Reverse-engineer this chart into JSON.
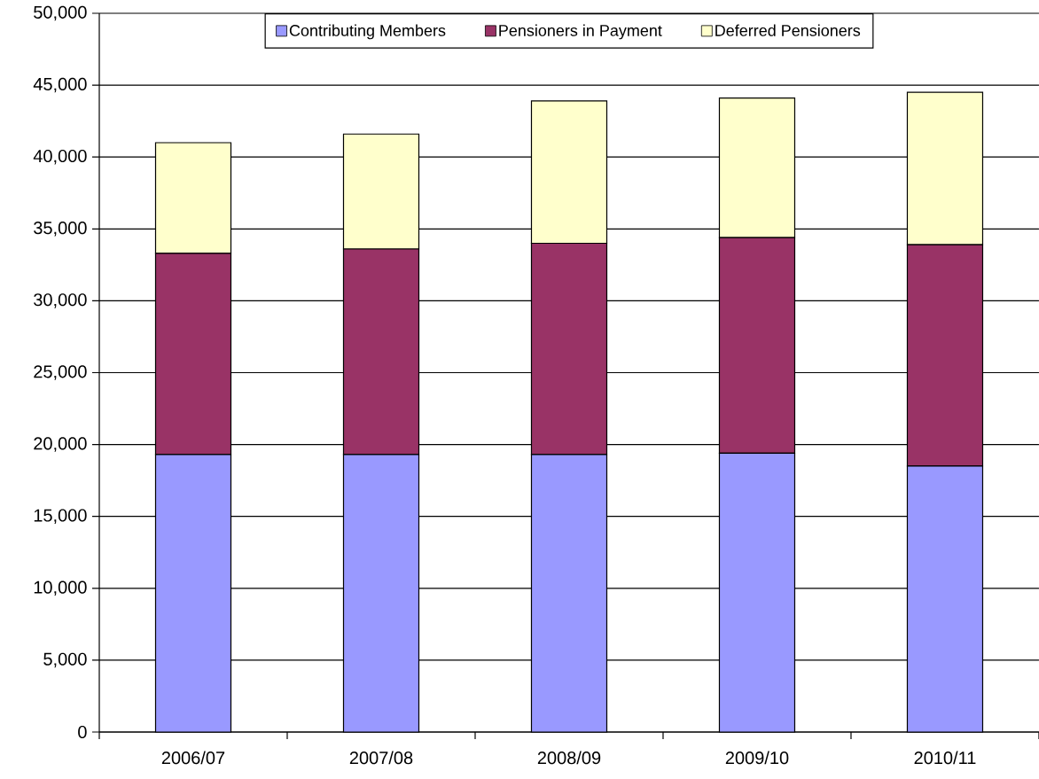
{
  "chart_data": {
    "type": "bar",
    "stacked": true,
    "categories": [
      "2006/07",
      "2007/08",
      "2008/09",
      "2009/10",
      "2010/11"
    ],
    "series": [
      {
        "name": "Contributing Members",
        "color": "#9999ff",
        "values": [
          19300,
          19300,
          19300,
          19400,
          18500
        ]
      },
      {
        "name": "Pensioners in Payment",
        "color": "#993366",
        "values": [
          14000,
          14300,
          14700,
          15000,
          15400
        ]
      },
      {
        "name": "Deferred Pensioners",
        "color": "#ffffcc",
        "values": [
          7700,
          8000,
          9900,
          9700,
          10600
        ]
      }
    ],
    "ylim": [
      0,
      50000
    ],
    "yticks": [
      0,
      {
        "value": 5000,
        "label": "5,000"
      },
      {
        "value": 10000,
        "label": "10,000"
      },
      {
        "value": 15000,
        "label": "15,000"
      },
      {
        "value": 20000,
        "label": "20,000"
      },
      {
        "value": 25000,
        "label": "25,000"
      },
      {
        "value": 30000,
        "label": "30,000"
      },
      {
        "value": 35000,
        "label": "35,000"
      },
      {
        "value": 40000,
        "label": "40,000"
      },
      {
        "value": 45000,
        "label": "45,000"
      },
      {
        "value": 50000,
        "label": "50,000"
      }
    ],
    "grid": "y",
    "legend": "top"
  }
}
